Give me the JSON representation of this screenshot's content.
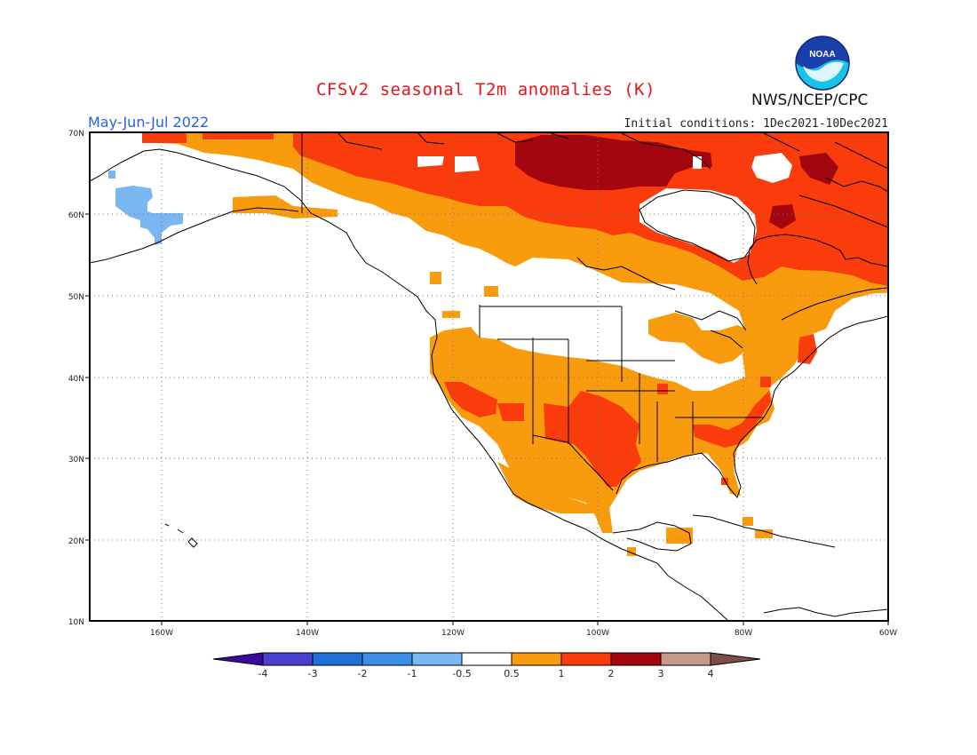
{
  "title": "CFSv2 seasonal T2m anomalies (K)",
  "period": "May-Jun-Jul 2022",
  "initial_conditions": "Initial conditions: 1Dec2021-10Dec2021",
  "agency": "NWS/NCEP/CPC",
  "logo": {
    "icon": "noaa-logo-icon",
    "text": "NOAA"
  },
  "map": {
    "projection": "lat-lon",
    "lon_range": [
      -170,
      -60
    ],
    "lat_range": [
      10,
      70
    ],
    "latitude_labels": [
      "70N",
      "60N",
      "50N",
      "40N",
      "30N",
      "20N",
      "10N"
    ],
    "longitude_labels": [
      "160W",
      "140W",
      "120W",
      "100W",
      "80W",
      "60W"
    ]
  },
  "colorbar": {
    "labels": [
      "-4",
      "-3",
      "-2",
      "-1",
      "-0.5",
      "0.5",
      "1",
      "2",
      "3",
      "4"
    ],
    "colors": [
      "#3a0a9c",
      "#4b3fd0",
      "#1f6fd6",
      "#3c8ee8",
      "#7ab6f2",
      "#ffffff",
      "#f89c0e",
      "#fa3b0c",
      "#a3060e",
      "#c49a88",
      "#7a4f44"
    ]
  },
  "anomaly_colors": {
    "cool_1": "#7ab6f2",
    "warm_05": "#f89c0e",
    "warm_1": "#fa3b0c",
    "warm_2": "#a3060e"
  }
}
